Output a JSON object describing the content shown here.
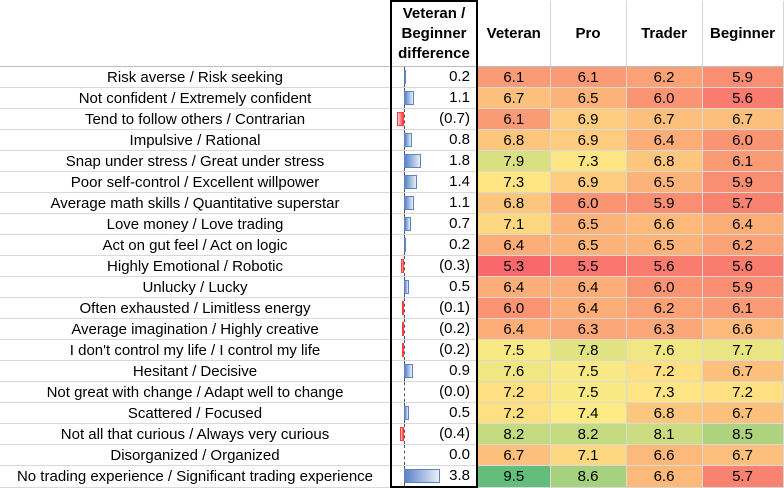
{
  "headers": {
    "diff": [
      "Veteran /",
      "Beginner",
      "difference"
    ],
    "veteran": "Veteran",
    "pro": "Pro",
    "trader": "Trader",
    "beginner": "Beginner"
  },
  "chart_data": {
    "type": "table",
    "columns": [
      "Veteran / Beginner difference",
      "Veteran",
      "Pro",
      "Trader",
      "Beginner"
    ],
    "rows": [
      {
        "label": "Risk averse / Risk seeking",
        "diff": 0.2,
        "diff_text": "0.2",
        "values": [
          6.1,
          6.1,
          6.2,
          5.9
        ]
      },
      {
        "label": "Not confident / Extremely confident",
        "diff": 1.1,
        "diff_text": "1.1",
        "values": [
          6.7,
          6.5,
          6.0,
          5.6
        ]
      },
      {
        "label": "Tend to follow others / Contrarian",
        "diff": -0.7,
        "diff_text": "(0.7)",
        "values": [
          6.1,
          6.9,
          6.7,
          6.7
        ]
      },
      {
        "label": "Impulsive / Rational",
        "diff": 0.8,
        "diff_text": "0.8",
        "values": [
          6.8,
          6.9,
          6.4,
          6.0
        ]
      },
      {
        "label": "Snap under stress / Great under stress",
        "diff": 1.8,
        "diff_text": "1.8",
        "values": [
          7.9,
          7.3,
          6.8,
          6.1
        ]
      },
      {
        "label": "Poor self-control / Excellent willpower",
        "diff": 1.4,
        "diff_text": "1.4",
        "values": [
          7.3,
          6.9,
          6.5,
          5.9
        ]
      },
      {
        "label": "Average math skills / Quantitative superstar",
        "diff": 1.1,
        "diff_text": "1.1",
        "values": [
          6.8,
          6.0,
          5.9,
          5.7
        ]
      },
      {
        "label": "Love money / Love trading",
        "diff": 0.7,
        "diff_text": "0.7",
        "values": [
          7.1,
          6.5,
          6.6,
          6.4
        ]
      },
      {
        "label": "Act on gut feel / Act on logic",
        "diff": 0.2,
        "diff_text": "0.2",
        "values": [
          6.4,
          6.5,
          6.5,
          6.2
        ]
      },
      {
        "label": "Highly Emotional / Robotic",
        "diff": -0.3,
        "diff_text": "(0.3)",
        "values": [
          5.3,
          5.5,
          5.6,
          5.6
        ]
      },
      {
        "label": "Unlucky / Lucky",
        "diff": 0.5,
        "diff_text": "0.5",
        "values": [
          6.4,
          6.4,
          6.0,
          5.9
        ]
      },
      {
        "label": "Often exhausted / Limitless energy",
        "diff": -0.1,
        "diff_text": "(0.1)",
        "values": [
          6.0,
          6.4,
          6.2,
          6.1
        ]
      },
      {
        "label": "Average imagination / Highly creative",
        "diff": -0.2,
        "diff_text": "(0.2)",
        "values": [
          6.4,
          6.3,
          6.3,
          6.6
        ]
      },
      {
        "label": "I don't control my life / I control my life",
        "diff": -0.2,
        "diff_text": "(0.2)",
        "values": [
          7.5,
          7.8,
          7.6,
          7.7
        ]
      },
      {
        "label": "Hesitant / Decisive",
        "diff": 0.9,
        "diff_text": "0.9",
        "values": [
          7.6,
          7.5,
          7.2,
          6.7
        ]
      },
      {
        "label": "Not great with change / Adapt well to change",
        "diff": -0.0,
        "diff_text": "(0.0)",
        "values": [
          7.2,
          7.5,
          7.3,
          7.2
        ]
      },
      {
        "label": "Scattered / Focused",
        "diff": 0.5,
        "diff_text": "0.5",
        "values": [
          7.2,
          7.4,
          6.8,
          6.7
        ]
      },
      {
        "label": "Not all that curious / Always very curious",
        "diff": -0.4,
        "diff_text": "(0.4)",
        "values": [
          8.2,
          8.2,
          8.1,
          8.5
        ]
      },
      {
        "label": "Disorganized / Organized",
        "diff": 0.0,
        "diff_text": "0.0",
        "values": [
          6.7,
          7.1,
          6.6,
          6.7
        ]
      },
      {
        "label": "No trading experience / Significant trading experience",
        "diff": 3.8,
        "diff_text": "3.8",
        "values": [
          9.5,
          8.6,
          6.6,
          5.7
        ]
      }
    ],
    "color_scale": {
      "low": "#f8696b",
      "mid": "#ffeb84",
      "high": "#63be7b",
      "min": 5.3,
      "max": 9.5
    },
    "bar_colors": {
      "positive": "#5b84c6",
      "negative": "#ff3b3b"
    }
  }
}
